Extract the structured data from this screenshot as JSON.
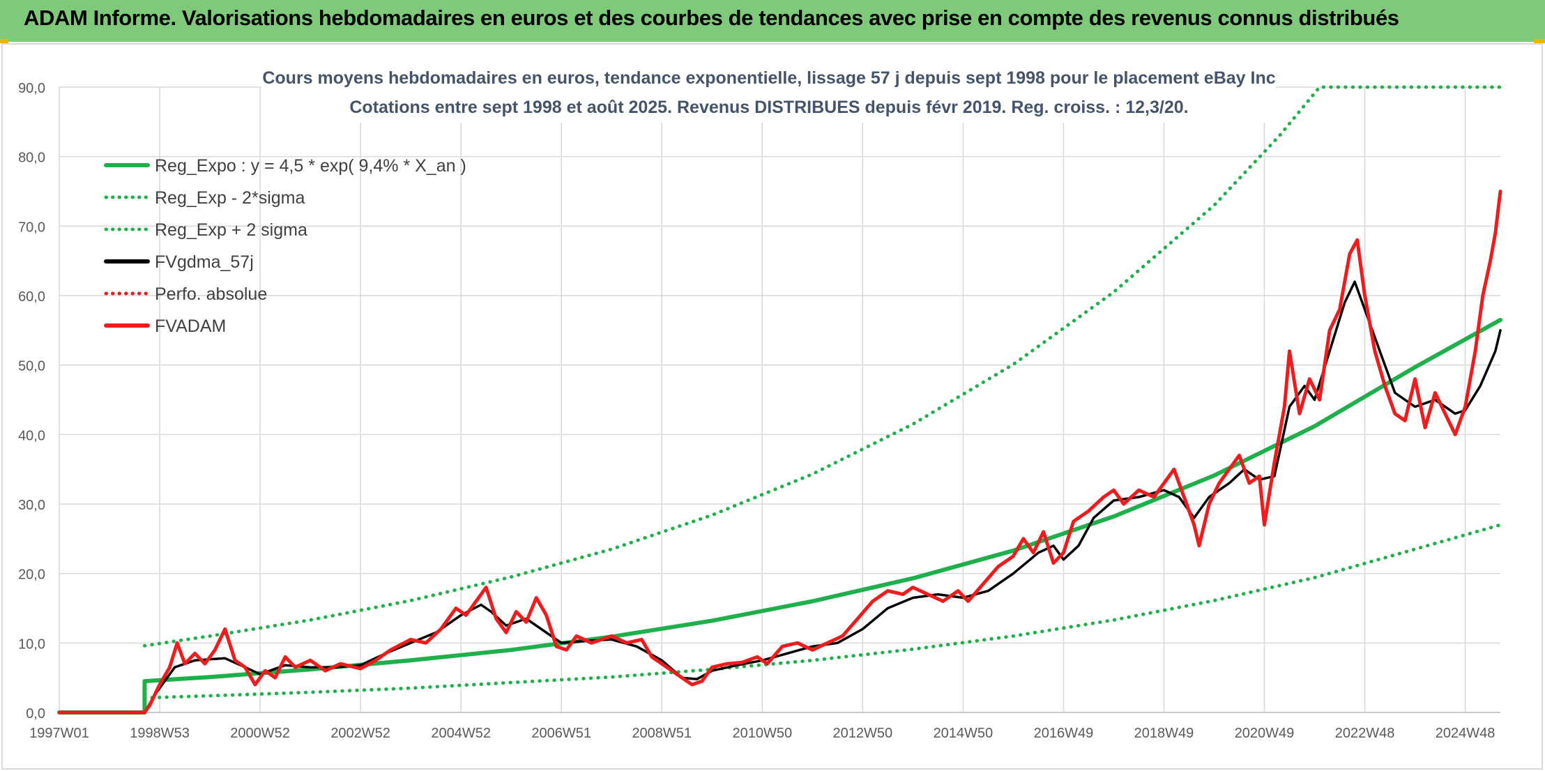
{
  "header": {
    "title": "ADAM Informe. Valorisations hebdomadaires en euros et des courbes de tendances avec prise en compte des revenus connus distribués"
  },
  "chart_data": {
    "type": "line",
    "title": "Cours moyens hebdomadaires en euros, tendance exponentielle, lissage 57 j depuis sept 1998 pour le placement eBay Inc",
    "subtitle": "Cotations entre sept 1998 et août 2025. Revenus DISTRIBUES depuis févr 2019. Reg. croiss. : 12,3/20.",
    "xlabel": "",
    "ylabel": "",
    "ylim": [
      0,
      90
    ],
    "yticks": [
      "0,0",
      "10,0",
      "20,0",
      "30,0",
      "40,0",
      "50,0",
      "60,0",
      "70,0",
      "80,0",
      "90,0"
    ],
    "xlim": [
      1997.0,
      2025.7
    ],
    "xticks": [
      {
        "label": "1997W01",
        "x": 1997.0
      },
      {
        "label": "1998W53",
        "x": 1999.0
      },
      {
        "label": "2000W52",
        "x": 2001.0
      },
      {
        "label": "2002W52",
        "x": 2003.0
      },
      {
        "label": "2004W52",
        "x": 2005.0
      },
      {
        "label": "2006W51",
        "x": 2007.0
      },
      {
        "label": "2008W51",
        "x": 2009.0
      },
      {
        "label": "2010W50",
        "x": 2011.0
      },
      {
        "label": "2012W50",
        "x": 2013.0
      },
      {
        "label": "2014W50",
        "x": 2015.0
      },
      {
        "label": "2016W49",
        "x": 2017.0
      },
      {
        "label": "2018W49",
        "x": 2019.0
      },
      {
        "label": "2020W49",
        "x": 2021.0
      },
      {
        "label": "2022W48",
        "x": 2023.0
      },
      {
        "label": "2024W48",
        "x": 2025.0
      }
    ],
    "grid": true,
    "legend_position": "top-left",
    "series": [
      {
        "name": "Reg_Expo : y = 4,5 * exp( 9,4% *  X_an )",
        "style": "solid",
        "color": "#1fb04c",
        "points": [
          [
            1997.0,
            0
          ],
          [
            1998.7,
            0
          ],
          [
            1998.7,
            4.5
          ],
          [
            2000,
            5.1
          ],
          [
            2002,
            6.2
          ],
          [
            2004,
            7.5
          ],
          [
            2006,
            9.0
          ],
          [
            2008,
            10.9
          ],
          [
            2010,
            13.2
          ],
          [
            2012,
            16.0
          ],
          [
            2014,
            19.3
          ],
          [
            2016,
            23.3
          ],
          [
            2018,
            28.2
          ],
          [
            2020,
            34.1
          ],
          [
            2022,
            41.2
          ],
          [
            2024,
            49.7
          ],
          [
            2025.7,
            56.5
          ]
        ]
      },
      {
        "name": "Reg_Exp - 2*sigma",
        "style": "dotted",
        "color": "#1fb04c",
        "points": [
          [
            1998.7,
            2.1
          ],
          [
            2000,
            2.4
          ],
          [
            2002,
            2.9
          ],
          [
            2004,
            3.5
          ],
          [
            2006,
            4.3
          ],
          [
            2008,
            5.1
          ],
          [
            2010,
            6.2
          ],
          [
            2012,
            7.5
          ],
          [
            2014,
            9.1
          ],
          [
            2016,
            11.0
          ],
          [
            2018,
            13.3
          ],
          [
            2020,
            16.1
          ],
          [
            2022,
            19.4
          ],
          [
            2024,
            23.5
          ],
          [
            2025.7,
            27.0
          ]
        ]
      },
      {
        "name": "Reg_Exp + 2 sigma",
        "style": "dotted",
        "color": "#1fb04c",
        "points": [
          [
            1998.7,
            9.6
          ],
          [
            2000,
            11.0
          ],
          [
            2002,
            13.3
          ],
          [
            2004,
            16.1
          ],
          [
            2006,
            19.5
          ],
          [
            2008,
            23.5
          ],
          [
            2010,
            28.4
          ],
          [
            2012,
            34.3
          ],
          [
            2014,
            41.5
          ],
          [
            2016,
            50.1
          ],
          [
            2018,
            60.5
          ],
          [
            2020,
            73.0
          ],
          [
            2021.3,
            83.0
          ],
          [
            2022.1,
            90.0
          ],
          [
            2025.7,
            90.0
          ]
        ]
      },
      {
        "name": "FVgdma_57j",
        "style": "solid",
        "color": "#000000",
        "points": [
          [
            1997.0,
            0
          ],
          [
            1998.7,
            0
          ],
          [
            1998.9,
            2.5
          ],
          [
            1999.3,
            6.5
          ],
          [
            1999.7,
            7.5
          ],
          [
            2000.3,
            7.8
          ],
          [
            2000.7,
            6.5
          ],
          [
            2001.0,
            5.5
          ],
          [
            2001.5,
            6.8
          ],
          [
            2002.0,
            6.5
          ],
          [
            2002.5,
            6.5
          ],
          [
            2003.0,
            6.8
          ],
          [
            2003.5,
            8.5
          ],
          [
            2004.0,
            10.0
          ],
          [
            2004.5,
            11.5
          ],
          [
            2005.0,
            14.0
          ],
          [
            2005.4,
            15.5
          ],
          [
            2005.6,
            14.5
          ],
          [
            2005.9,
            12.5
          ],
          [
            2006.3,
            13.5
          ],
          [
            2006.6,
            12.0
          ],
          [
            2007.0,
            10.0
          ],
          [
            2007.5,
            10.3
          ],
          [
            2008.0,
            10.5
          ],
          [
            2008.5,
            9.5
          ],
          [
            2009.0,
            7.5
          ],
          [
            2009.4,
            5.0
          ],
          [
            2009.7,
            4.8
          ],
          [
            2010.0,
            6.0
          ],
          [
            2010.5,
            6.8
          ],
          [
            2011.0,
            7.5
          ],
          [
            2011.5,
            8.5
          ],
          [
            2012.0,
            9.5
          ],
          [
            2012.5,
            10.0
          ],
          [
            2013.0,
            12.0
          ],
          [
            2013.5,
            15.0
          ],
          [
            2014.0,
            16.5
          ],
          [
            2014.5,
            17.0
          ],
          [
            2015.0,
            16.5
          ],
          [
            2015.5,
            17.5
          ],
          [
            2016.0,
            20.0
          ],
          [
            2016.5,
            23.0
          ],
          [
            2016.8,
            24.0
          ],
          [
            2017.0,
            22.0
          ],
          [
            2017.3,
            24.0
          ],
          [
            2017.6,
            28.0
          ],
          [
            2018.0,
            30.5
          ],
          [
            2018.5,
            31.0
          ],
          [
            2019.0,
            32.0
          ],
          [
            2019.3,
            31.0
          ],
          [
            2019.6,
            28.0
          ],
          [
            2019.9,
            31.0
          ],
          [
            2020.3,
            33.0
          ],
          [
            2020.6,
            35.0
          ],
          [
            2020.9,
            33.5
          ],
          [
            2021.2,
            34.0
          ],
          [
            2021.5,
            44.0
          ],
          [
            2021.8,
            47.0
          ],
          [
            2022.0,
            45.0
          ],
          [
            2022.3,
            52.0
          ],
          [
            2022.6,
            59.0
          ],
          [
            2022.8,
            62.0
          ],
          [
            2023.0,
            58.0
          ],
          [
            2023.3,
            52.0
          ],
          [
            2023.6,
            46.0
          ],
          [
            2024.0,
            44.0
          ],
          [
            2024.4,
            45.0
          ],
          [
            2024.8,
            43.0
          ],
          [
            2025.0,
            43.5
          ],
          [
            2025.3,
            47.0
          ],
          [
            2025.6,
            52.0
          ],
          [
            2025.7,
            55.0
          ]
        ]
      },
      {
        "name": "Perfo. absolue",
        "style": "dotted",
        "color": "#e81c1c",
        "points": []
      },
      {
        "name": "FVADAM",
        "style": "solid",
        "color": "#ee1c1c",
        "points": [
          [
            1997.0,
            0
          ],
          [
            1998.7,
            0
          ],
          [
            1998.8,
            1.0
          ],
          [
            1999.0,
            4.0
          ],
          [
            1999.2,
            6.5
          ],
          [
            1999.35,
            10.0
          ],
          [
            1999.5,
            7.0
          ],
          [
            1999.7,
            8.5
          ],
          [
            1999.9,
            7.0
          ],
          [
            2000.1,
            9.0
          ],
          [
            2000.3,
            12.0
          ],
          [
            2000.5,
            7.5
          ],
          [
            2000.7,
            6.5
          ],
          [
            2000.9,
            4.0
          ],
          [
            2001.1,
            6.0
          ],
          [
            2001.3,
            5.0
          ],
          [
            2001.5,
            8.0
          ],
          [
            2001.7,
            6.5
          ],
          [
            2002.0,
            7.5
          ],
          [
            2002.3,
            6.0
          ],
          [
            2002.6,
            7.0
          ],
          [
            2003.0,
            6.3
          ],
          [
            2003.3,
            7.5
          ],
          [
            2003.6,
            9.0
          ],
          [
            2004.0,
            10.5
          ],
          [
            2004.3,
            10.0
          ],
          [
            2004.6,
            12.0
          ],
          [
            2004.9,
            15.0
          ],
          [
            2005.1,
            14.0
          ],
          [
            2005.4,
            17.0
          ],
          [
            2005.5,
            18.0
          ],
          [
            2005.7,
            13.5
          ],
          [
            2005.9,
            11.5
          ],
          [
            2006.1,
            14.5
          ],
          [
            2006.3,
            13.0
          ],
          [
            2006.5,
            16.5
          ],
          [
            2006.7,
            14.0
          ],
          [
            2006.9,
            9.5
          ],
          [
            2007.1,
            9.0
          ],
          [
            2007.3,
            11.0
          ],
          [
            2007.6,
            10.0
          ],
          [
            2008.0,
            11.0
          ],
          [
            2008.3,
            10.0
          ],
          [
            2008.6,
            10.5
          ],
          [
            2008.8,
            8.0
          ],
          [
            2009.0,
            7.0
          ],
          [
            2009.3,
            5.5
          ],
          [
            2009.6,
            4.0
          ],
          [
            2009.8,
            4.5
          ],
          [
            2010.0,
            6.5
          ],
          [
            2010.3,
            7.0
          ],
          [
            2010.6,
            7.2
          ],
          [
            2010.9,
            8.0
          ],
          [
            2011.1,
            7.0
          ],
          [
            2011.4,
            9.5
          ],
          [
            2011.7,
            10.0
          ],
          [
            2012.0,
            9.0
          ],
          [
            2012.3,
            10.0
          ],
          [
            2012.6,
            11.0
          ],
          [
            2012.9,
            13.5
          ],
          [
            2013.2,
            16.0
          ],
          [
            2013.5,
            17.5
          ],
          [
            2013.8,
            17.0
          ],
          [
            2014.0,
            18.0
          ],
          [
            2014.3,
            17.0
          ],
          [
            2014.6,
            16.0
          ],
          [
            2014.9,
            17.5
          ],
          [
            2015.1,
            16.0
          ],
          [
            2015.4,
            18.5
          ],
          [
            2015.7,
            21.0
          ],
          [
            2016.0,
            22.5
          ],
          [
            2016.2,
            25.0
          ],
          [
            2016.4,
            23.0
          ],
          [
            2016.6,
            26.0
          ],
          [
            2016.8,
            21.5
          ],
          [
            2017.0,
            23.0
          ],
          [
            2017.2,
            27.5
          ],
          [
            2017.5,
            29.0
          ],
          [
            2017.8,
            31.0
          ],
          [
            2018.0,
            32.0
          ],
          [
            2018.2,
            30.0
          ],
          [
            2018.5,
            32.0
          ],
          [
            2018.8,
            31.0
          ],
          [
            2019.0,
            33.0
          ],
          [
            2019.2,
            35.0
          ],
          [
            2019.4,
            31.0
          ],
          [
            2019.6,
            27.0
          ],
          [
            2019.7,
            24.0
          ],
          [
            2019.9,
            30.0
          ],
          [
            2020.1,
            33.0
          ],
          [
            2020.3,
            35.0
          ],
          [
            2020.5,
            37.0
          ],
          [
            2020.7,
            33.0
          ],
          [
            2020.9,
            34.0
          ],
          [
            2021.0,
            27.0
          ],
          [
            2021.2,
            36.0
          ],
          [
            2021.4,
            44.0
          ],
          [
            2021.5,
            52.0
          ],
          [
            2021.7,
            43.0
          ],
          [
            2021.9,
            48.0
          ],
          [
            2022.1,
            45.0
          ],
          [
            2022.3,
            55.0
          ],
          [
            2022.5,
            58.0
          ],
          [
            2022.7,
            66.0
          ],
          [
            2022.85,
            68.0
          ],
          [
            2023.0,
            60.0
          ],
          [
            2023.2,
            52.0
          ],
          [
            2023.4,
            47.0
          ],
          [
            2023.6,
            43.0
          ],
          [
            2023.8,
            42.0
          ],
          [
            2024.0,
            48.0
          ],
          [
            2024.2,
            41.0
          ],
          [
            2024.4,
            46.0
          ],
          [
            2024.6,
            43.0
          ],
          [
            2024.8,
            40.0
          ],
          [
            2025.0,
            44.0
          ],
          [
            2025.2,
            52.0
          ],
          [
            2025.35,
            60.0
          ],
          [
            2025.5,
            65.0
          ],
          [
            2025.6,
            69.0
          ],
          [
            2025.7,
            75.0
          ]
        ]
      }
    ]
  }
}
